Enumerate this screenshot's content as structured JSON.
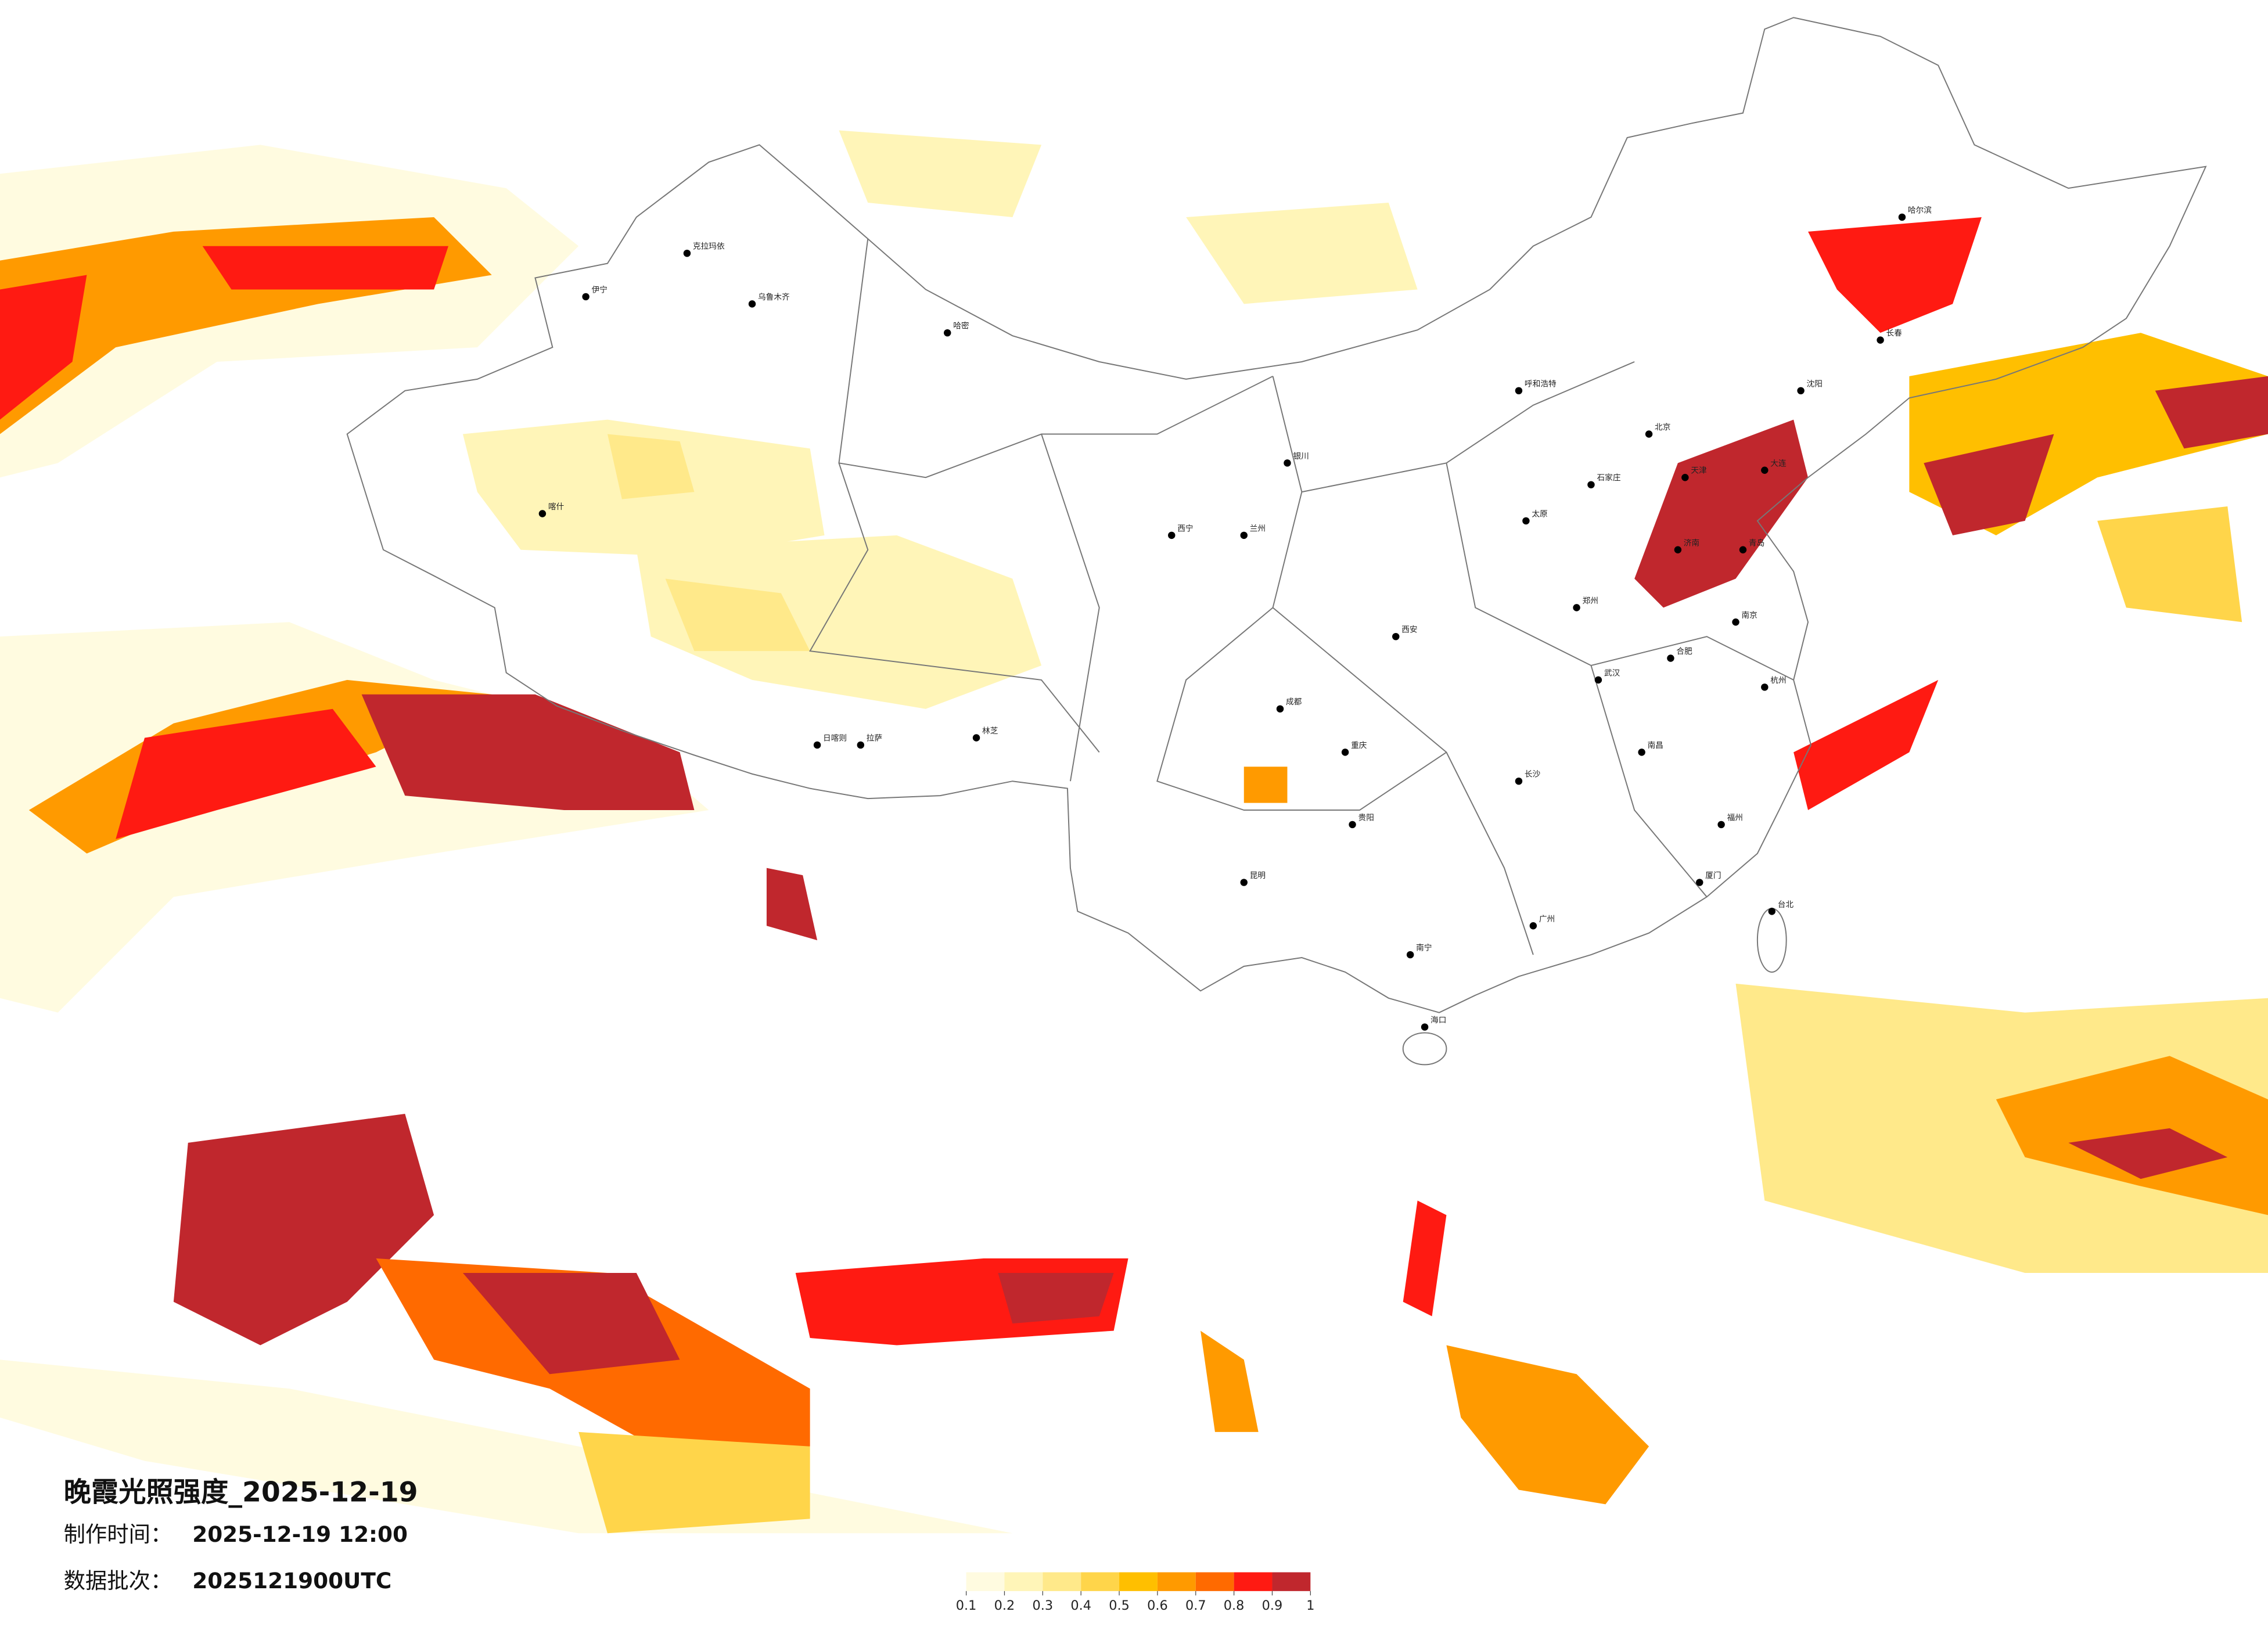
{
  "title": "晚霞光照强度_2025-12-19",
  "info": [
    {
      "label": "制作时间：",
      "value": "2025-12-19 12:00"
    },
    {
      "label": "数据批次：",
      "value": "2025121900UTC"
    }
  ],
  "legend": {
    "ticks": [
      0.1,
      0.2,
      0.3,
      0.4,
      0.5,
      0.6,
      0.7,
      0.8,
      0.9,
      1
    ],
    "colors": [
      "#fffbe0",
      "#fff5b8",
      "#ffe98a",
      "#ffd54a",
      "#ffbf00",
      "#ff9a00",
      "#ff6a00",
      "#ff1a12",
      "#c0272d"
    ]
  },
  "cities": [
    "哈尔滨",
    "长春",
    "沈阳",
    "北京",
    "天津",
    "石家庄",
    "太原",
    "呼和浩特",
    "济南",
    "郑州",
    "西安",
    "兰州",
    "西宁",
    "银川",
    "乌鲁木齐",
    "拉萨",
    "成都",
    "重庆",
    "贵阳",
    "昆明",
    "南宁",
    "广州",
    "长沙",
    "武汉",
    "南昌",
    "合肥",
    "南京",
    "杭州",
    "福州",
    "海口",
    "台北",
    "喀什",
    "伊宁",
    "克拉玛依",
    "哈密",
    "日喀则",
    "林芝",
    "大连",
    "青岛",
    "厦门"
  ]
}
